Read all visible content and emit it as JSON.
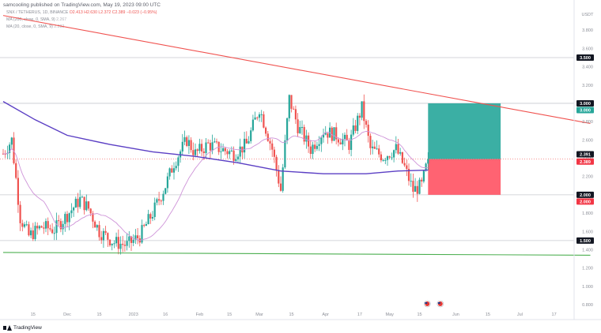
{
  "header": {
    "published": "samcooling published on TradingView.com, May 19, 2023 09:00 UTC"
  },
  "legend": {
    "symbol": "SNX / TETHERUS, 1D, BINANCE",
    "ohlc": "O2.413 H2.630 L2.372 C2.389 −0.023 (−0.95%)",
    "ma200": "MA (200, close, 0, SMA, 9)",
    "ma200_value": "2.267",
    "ma20": "MA (20, close, 0, SMA, 9)",
    "ma20_value": "2.282"
  },
  "footer": {
    "brand": "TradingView"
  },
  "colors": {
    "up": "#26a69a",
    "down": "#ef5350",
    "ma200": "#5b3fc4",
    "ma20": "#ce93d8",
    "trend": "#f0524f",
    "support": "#4caf50",
    "target": "#26a69a",
    "stop": "#ff5263"
  },
  "chart_data": {
    "type": "candlestick",
    "currency_label": "USDT",
    "ylim": [
      0.8,
      4.0
    ],
    "y_ticks": [
      0.8,
      1.0,
      1.2,
      1.4,
      1.6,
      1.8,
      2.0,
      2.2,
      2.4,
      2.6,
      2.8,
      3.0,
      3.2,
      3.4,
      3.6,
      3.8
    ],
    "y_tick_labels": [
      "0.800",
      "1.000",
      "1.200",
      "1.400",
      "1.600",
      "1.800",
      "2.000",
      "2.200",
      "2.400",
      "2.600",
      "2.800",
      "3.000",
      "3.200",
      "3.400",
      "3.600",
      "3.800"
    ],
    "x_ticks": [
      "15",
      "Dec",
      "15",
      "2023",
      "16",
      "Feb",
      "15",
      "Mar",
      "15",
      "Apr",
      "17",
      "May",
      "15",
      "Jun",
      "15",
      "Jul",
      "17"
    ],
    "x_tick_days": [
      14,
      30,
      45,
      61,
      76,
      92,
      106,
      120,
      135,
      151,
      167,
      181,
      195,
      212,
      227,
      242,
      258
    ],
    "price_labels": [
      {
        "text": "3.500",
        "value": 3.5,
        "style": "dark"
      },
      {
        "text": "3.000",
        "value": 3.0,
        "style": "dark"
      },
      {
        "text": "3.000",
        "value": 3.0,
        "style": "green"
      },
      {
        "text": "2.391",
        "value": 2.391,
        "style": "dark"
      },
      {
        "text": "2.389",
        "value": 2.389,
        "style": "red"
      },
      {
        "text": "2.000",
        "value": 2.0,
        "style": "dark"
      },
      {
        "text": "2.000",
        "value": 2.0,
        "style": "red"
      },
      {
        "text": "1.500",
        "value": 1.5,
        "style": "dark"
      }
    ],
    "horizontal_lines": [
      3.5,
      3.0,
      2.0,
      1.5
    ],
    "trendline": {
      "start": {
        "day": 0,
        "price": 3.96
      },
      "end": {
        "day": 275,
        "price": 2.78
      }
    },
    "support_line": {
      "start": {
        "day": 0,
        "price": 1.37
      },
      "end": {
        "day": 275,
        "price": 1.34
      }
    },
    "position": {
      "start_day": 199,
      "end_day": 233,
      "entry": 2.39,
      "target": 3.0,
      "stop": 2.0
    },
    "key_closes": [
      {
        "day": 0,
        "price": 2.45
      },
      {
        "day": 4,
        "price": 2.6
      },
      {
        "day": 8,
        "price": 1.75
      },
      {
        "day": 12,
        "price": 1.55
      },
      {
        "day": 18,
        "price": 1.65
      },
      {
        "day": 24,
        "price": 1.62
      },
      {
        "day": 30,
        "price": 1.78
      },
      {
        "day": 36,
        "price": 1.95
      },
      {
        "day": 40,
        "price": 1.85
      },
      {
        "day": 45,
        "price": 1.6
      },
      {
        "day": 52,
        "price": 1.48
      },
      {
        "day": 58,
        "price": 1.45
      },
      {
        "day": 64,
        "price": 1.55
      },
      {
        "day": 70,
        "price": 1.8
      },
      {
        "day": 76,
        "price": 2.1
      },
      {
        "day": 80,
        "price": 2.35
      },
      {
        "day": 86,
        "price": 2.6
      },
      {
        "day": 90,
        "price": 2.45
      },
      {
        "day": 96,
        "price": 2.55
      },
      {
        "day": 102,
        "price": 2.5
      },
      {
        "day": 108,
        "price": 2.45
      },
      {
        "day": 114,
        "price": 2.55
      },
      {
        "day": 120,
        "price": 2.95
      },
      {
        "day": 126,
        "price": 2.5
      },
      {
        "day": 130,
        "price": 2.05
      },
      {
        "day": 134,
        "price": 3.05
      },
      {
        "day": 138,
        "price": 2.75
      },
      {
        "day": 144,
        "price": 2.5
      },
      {
        "day": 150,
        "price": 2.7
      },
      {
        "day": 156,
        "price": 2.65
      },
      {
        "day": 162,
        "price": 2.55
      },
      {
        "day": 168,
        "price": 2.95
      },
      {
        "day": 172,
        "price": 2.5
      },
      {
        "day": 178,
        "price": 2.42
      },
      {
        "day": 184,
        "price": 2.5
      },
      {
        "day": 188,
        "price": 2.3
      },
      {
        "day": 192,
        "price": 2.05
      },
      {
        "day": 196,
        "price": 2.1
      },
      {
        "day": 199,
        "price": 2.389
      }
    ],
    "ma200_points": [
      {
        "day": 0,
        "price": 3.02
      },
      {
        "day": 15,
        "price": 2.82
      },
      {
        "day": 30,
        "price": 2.65
      },
      {
        "day": 50,
        "price": 2.55
      },
      {
        "day": 70,
        "price": 2.47
      },
      {
        "day": 90,
        "price": 2.42
      },
      {
        "day": 110,
        "price": 2.35
      },
      {
        "day": 130,
        "price": 2.26
      },
      {
        "day": 150,
        "price": 2.23
      },
      {
        "day": 170,
        "price": 2.23
      },
      {
        "day": 185,
        "price": 2.26
      },
      {
        "day": 199,
        "price": 2.27
      }
    ]
  }
}
